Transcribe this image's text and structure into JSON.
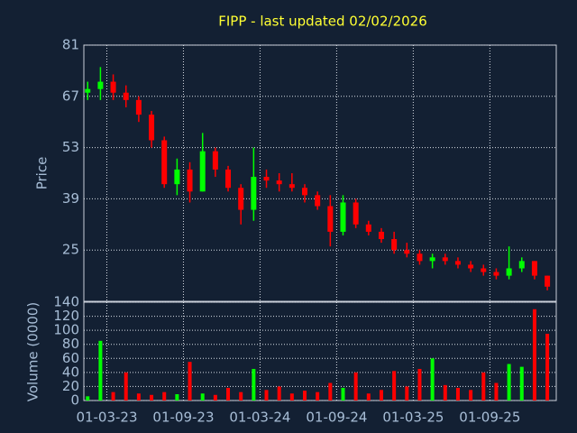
{
  "chart_data": {
    "type": "candlestick",
    "title": "FIPP - last updated 02/02/2026",
    "y_label": "Price",
    "y2_label": "Volume (0000)",
    "x": [
      0.5,
      1.5,
      2.5,
      3.5,
      4.5,
      5.5,
      6.5,
      7.5,
      8.5,
      9.5,
      10.5,
      11.5,
      12.5,
      13.5,
      14.5,
      15.5,
      16.5,
      17.5,
      18.5,
      19.5,
      20.5,
      21.5,
      22.5,
      23.5,
      24.5,
      25.5,
      26.5,
      27.5,
      28.5,
      29.5,
      30.5,
      31.5,
      32.5,
      33.5,
      34.5,
      35.5,
      36.5
    ],
    "open": [
      68,
      69,
      71,
      68,
      66,
      62,
      55,
      43,
      47,
      41,
      52,
      47,
      42,
      36,
      45,
      44,
      43,
      42,
      40,
      37,
      30,
      38,
      32,
      30,
      28,
      25,
      24,
      22,
      23,
      22,
      21,
      20,
      19,
      18,
      20,
      22,
      18
    ],
    "high": [
      71,
      75,
      73,
      70,
      67,
      63,
      56,
      50,
      49,
      57,
      53,
      48,
      43,
      53,
      47,
      46,
      46,
      43,
      41,
      40,
      40,
      39,
      33,
      31,
      30,
      27,
      25,
      24,
      24,
      23,
      22,
      21,
      20,
      26,
      23,
      22,
      18
    ],
    "low": [
      66,
      66,
      66,
      64,
      60,
      53,
      42,
      40,
      38,
      41,
      45,
      41,
      32,
      33,
      42,
      41,
      41,
      38,
      36,
      26,
      29,
      31,
      29,
      27,
      24,
      23,
      21,
      20,
      21,
      20,
      19,
      18,
      17,
      17,
      19,
      17,
      14
    ],
    "close": [
      69,
      71,
      68,
      66,
      62,
      55,
      43,
      47,
      41,
      52,
      47,
      42,
      36,
      45,
      44,
      43,
      42,
      40,
      37,
      30,
      38,
      32,
      30,
      28,
      25,
      24,
      22,
      23,
      22,
      21,
      20,
      19,
      18,
      20,
      22,
      18,
      15
    ],
    "volume": [
      6,
      85,
      12,
      40,
      10,
      8,
      12,
      9,
      55,
      10,
      8,
      18,
      12,
      45,
      15,
      20,
      10,
      14,
      12,
      25,
      18,
      40,
      10,
      15,
      42,
      20,
      45,
      60,
      22,
      18,
      15,
      40,
      25,
      52,
      48,
      130,
      95
    ],
    "up_color": "#00ff00",
    "down_color": "#ff0000",
    "xlim": [
      0.2,
      37.2
    ],
    "xticks": [
      {
        "value": 2,
        "label": "01-03-23"
      },
      {
        "value": 8,
        "label": "01-09-23"
      },
      {
        "value": 14,
        "label": "01-03-24"
      },
      {
        "value": 20,
        "label": "01-09-24"
      },
      {
        "value": 26,
        "label": "01-03-25"
      },
      {
        "value": 32,
        "label": "01-09-25"
      }
    ],
    "ylim": [
      11,
      81
    ],
    "yticks": [
      25,
      39,
      53,
      67,
      81
    ],
    "y2lim": [
      0,
      140
    ],
    "y2ticks": [
      0,
      20,
      40,
      60,
      80,
      100,
      120,
      140
    ],
    "grid": true
  }
}
